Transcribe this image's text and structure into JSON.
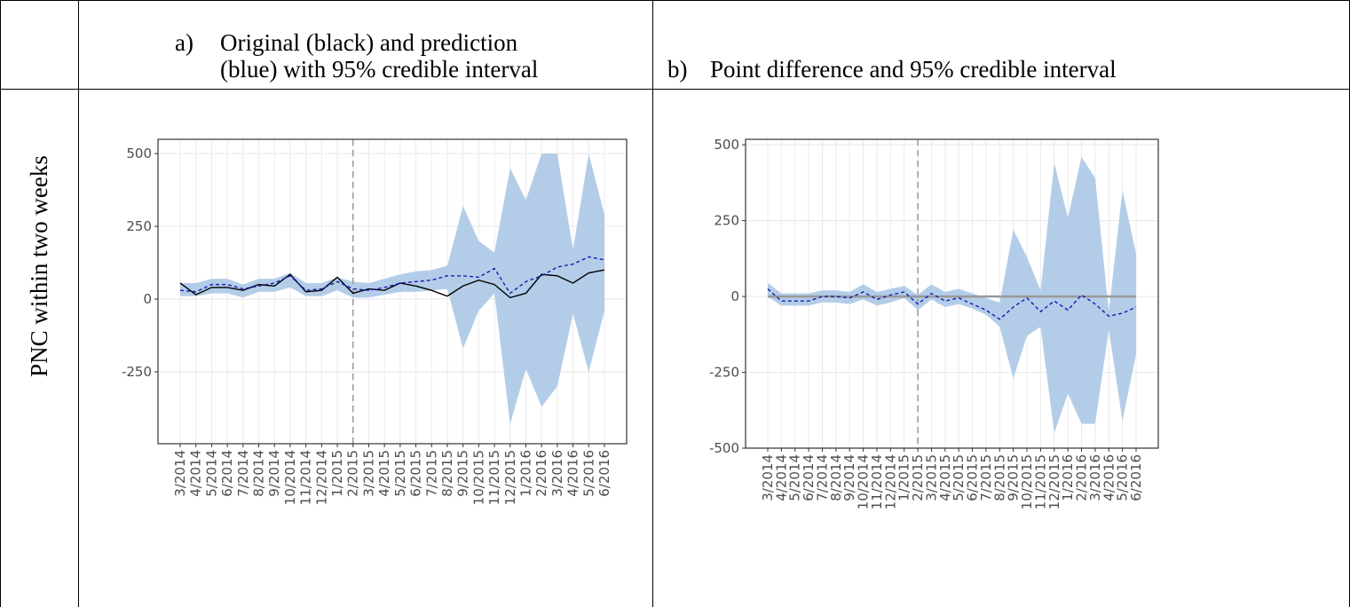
{
  "table": {
    "header": [
      {
        "marker": "a)",
        "lines": [
          "Original (black) and prediction",
          "(blue) with 95% credible interval"
        ]
      },
      {
        "marker": "b)",
        "lines": [
          "Point difference and 95% credible interval"
        ]
      }
    ],
    "row_label": "PNC within two weeks"
  },
  "chart_data": [
    {
      "type": "line",
      "categories": [
        "3/2014",
        "4/2014",
        "5/2014",
        "6/2014",
        "7/2014",
        "8/2014",
        "9/2014",
        "10/2014",
        "11/2014",
        "12/2014",
        "1/2015",
        "2/2015",
        "3/2015",
        "4/2015",
        "5/2015",
        "6/2015",
        "7/2015",
        "8/2015",
        "9/2015",
        "10/2015",
        "11/2015",
        "12/2015",
        "1/2016",
        "2/2016",
        "3/2016",
        "4/2016",
        "5/2016",
        "6/2016"
      ],
      "ylim": [
        -497,
        549
      ],
      "yticks": [
        -250,
        0,
        250,
        500
      ],
      "grid": true,
      "vline": "2/2015",
      "band": {
        "color": "#b3cde9",
        "lower": [
          10,
          10,
          20,
          20,
          5,
          25,
          25,
          40,
          10,
          10,
          30,
          5,
          5,
          15,
          25,
          25,
          30,
          35,
          -170,
          -40,
          20,
          -430,
          -240,
          -370,
          -300,
          -50,
          -250,
          -40
        ],
        "upper": [
          55,
          55,
          70,
          70,
          50,
          70,
          70,
          90,
          55,
          55,
          75,
          60,
          55,
          70,
          85,
          95,
          100,
          115,
          320,
          200,
          160,
          450,
          340,
          500,
          500,
          170,
          500,
          290
        ]
      },
      "series": [
        {
          "color": "#000000",
          "dashed": false,
          "values": [
            55,
            15,
            40,
            40,
            30,
            50,
            45,
            85,
            25,
            30,
            75,
            20,
            35,
            30,
            55,
            45,
            30,
            10,
            45,
            65,
            50,
            5,
            20,
            85,
            80,
            55,
            90,
            100
          ]
        },
        {
          "color": "#1a1ab0",
          "dashed": true,
          "values": [
            30,
            25,
            50,
            50,
            35,
            45,
            55,
            80,
            30,
            35,
            60,
            35,
            30,
            40,
            55,
            60,
            65,
            80,
            80,
            75,
            105,
            20,
            60,
            80,
            110,
            120,
            145,
            135
          ]
        }
      ]
    },
    {
      "type": "line",
      "categories": [
        "3/2014",
        "4/2014",
        "5/2014",
        "6/2014",
        "7/2014",
        "8/2014",
        "9/2014",
        "10/2014",
        "11/2014",
        "12/2014",
        "1/2015",
        "2/2015",
        "3/2015",
        "4/2015",
        "5/2015",
        "6/2015",
        "7/2015",
        "8/2015",
        "9/2015",
        "10/2015",
        "11/2015",
        "12/2015",
        "1/2016",
        "2/2016",
        "3/2016",
        "4/2016",
        "5/2016",
        "6/2016"
      ],
      "ylim": [
        -500,
        518
      ],
      "yticks": [
        -500,
        -250,
        0,
        250,
        500
      ],
      "grid": true,
      "vline": "2/2015",
      "hline": {
        "value": 0,
        "color": "#999999"
      },
      "band": {
        "color": "#b3cde9",
        "lower": [
          0,
          -30,
          -30,
          -30,
          -20,
          -20,
          -25,
          -10,
          -30,
          -20,
          -5,
          -45,
          -10,
          -35,
          -25,
          -40,
          -60,
          -100,
          -270,
          -130,
          -100,
          -450,
          -320,
          -420,
          -420,
          -110,
          -410,
          -190
        ],
        "upper": [
          45,
          10,
          10,
          10,
          20,
          20,
          15,
          40,
          15,
          25,
          35,
          5,
          40,
          15,
          25,
          10,
          -5,
          -20,
          220,
          130,
          20,
          440,
          260,
          460,
          390,
          -50,
          350,
          140
        ]
      },
      "series": [
        {
          "color": "#1a1ab0",
          "dashed": true,
          "values": [
            25,
            -15,
            -15,
            -15,
            0,
            0,
            -5,
            15,
            -10,
            5,
            15,
            -25,
            10,
            -15,
            -5,
            -25,
            -45,
            -75,
            -35,
            -5,
            -50,
            -15,
            -45,
            5,
            -25,
            -65,
            -55,
            -35
          ]
        }
      ]
    }
  ]
}
